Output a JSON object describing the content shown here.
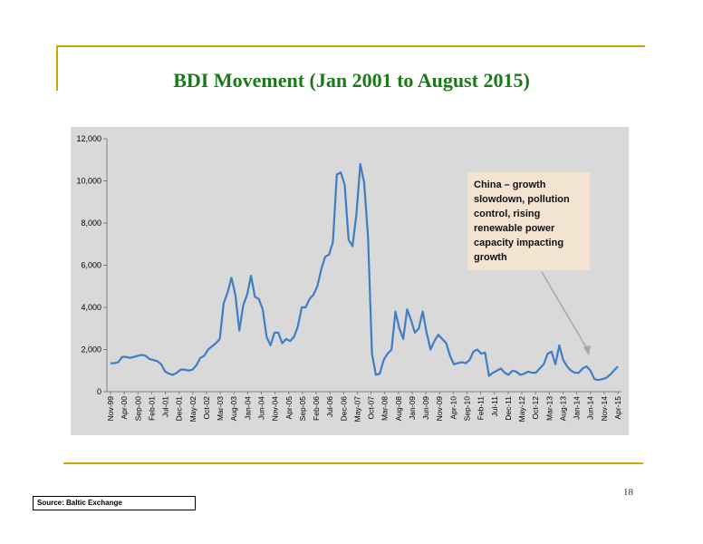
{
  "slide": {
    "title": "BDI Movement (Jan 2001 to August 2015)",
    "page_number": "18",
    "source": "Source: Baltic Exchange",
    "callout": "China – growth slowdown, pollution control, rising renewable power capacity impacting growth"
  },
  "colors": {
    "line": "#3f7ec4",
    "plot_bg": "#d9d9d9",
    "rule": "#c9a800",
    "title": "#1a7a1a",
    "callout_bg": "#f3e4d2",
    "arrow": "#a6a6a6"
  },
  "chart_data": {
    "type": "line",
    "title": "",
    "xlabel": "",
    "ylabel": "",
    "ylim": [
      0,
      12000
    ],
    "grid": false,
    "y_ticks": [
      "0",
      "2,000",
      "4,000",
      "6,000",
      "8,000",
      "10,000",
      "12,000"
    ],
    "x_tick_labels": [
      "Nov-99",
      "Apr-00",
      "Sep-00",
      "Feb-01",
      "Jul-01",
      "Dec-01",
      "May-02",
      "Oct-02",
      "Mar-03",
      "Aug-03",
      "Jan-04",
      "Jun-04",
      "Nov-04",
      "Apr-05",
      "Sep-05",
      "Feb-06",
      "Jul-06",
      "Dec-06",
      "May-07",
      "Oct-07",
      "Mar-08",
      "Aug-08",
      "Jan-09",
      "Jun-09",
      "Nov-09",
      "Apr-10",
      "Sep-10",
      "Feb-11",
      "Jul-11",
      "Dec-11",
      "May-12",
      "Oct-12",
      "Mar-13",
      "Aug-13",
      "Jan-14",
      "Jun-14",
      "Nov-14",
      "Apr-15"
    ],
    "series": [
      {
        "values": [
          1350,
          1350,
          1400,
          1650,
          1650,
          1600,
          1650,
          1700,
          1750,
          1700,
          1550,
          1500,
          1450,
          1300,
          950,
          850,
          800,
          900,
          1050,
          1050,
          1000,
          1050,
          1250,
          1600,
          1700,
          2000,
          2150,
          2300,
          2500,
          4200,
          4700,
          5400,
          4600,
          2900,
          4100,
          4600,
          5500,
          4500,
          4400,
          3900,
          2600,
          2200,
          2800,
          2800,
          2300,
          2500,
          2400,
          2600,
          3100,
          4000,
          4000,
          4400,
          4600,
          5000,
          5800,
          6400,
          6500,
          7100,
          10300,
          10400,
          9800,
          7200,
          6900,
          8400,
          10800,
          9900,
          7300,
          1800,
          800,
          850,
          1500,
          1800,
          2000,
          3800,
          3000,
          2500,
          3900,
          3400,
          2800,
          3000,
          3800,
          2800,
          2000,
          2400,
          2700,
          2500,
          2300,
          1700,
          1300,
          1350,
          1400,
          1350,
          1500,
          1900,
          2000,
          1800,
          1850,
          750,
          900,
          1000,
          1100,
          900,
          800,
          1000,
          950,
          800,
          850,
          950,
          900,
          900,
          1100,
          1300,
          1800,
          1900,
          1300,
          2200,
          1500,
          1200,
          1000,
          900,
          900,
          1100,
          1200,
          1000,
          600,
          550,
          600,
          650,
          800,
          1000,
          1200
        ]
      }
    ]
  }
}
